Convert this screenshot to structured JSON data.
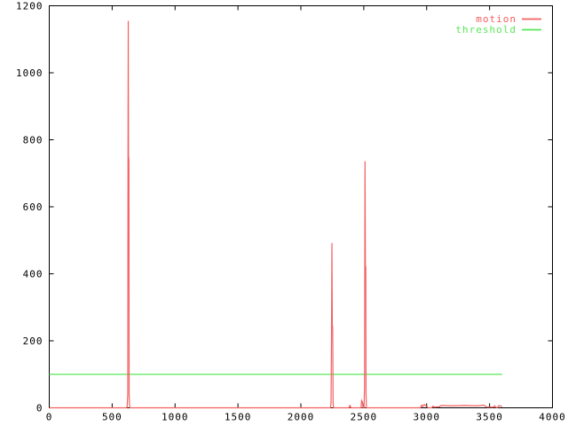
{
  "window": {
    "title": "",
    "background": "#ffffff"
  },
  "chart_data": {
    "type": "line",
    "title": "",
    "xlabel": "",
    "ylabel": "",
    "xlim": [
      0,
      4000
    ],
    "ylim": [
      0,
      1200
    ],
    "x_ticks": [
      0,
      500,
      1000,
      1500,
      2000,
      2500,
      3000,
      3500,
      4000
    ],
    "y_ticks": [
      0,
      200,
      400,
      600,
      800,
      1000,
      1200
    ],
    "grid": false,
    "legend_position": "top-right-inside",
    "axis_color": "#000000",
    "tick_label_color": "#000000",
    "series": [
      {
        "name": "motion",
        "color": "#f46060",
        "peaks_summary": [
          {
            "x": 628,
            "peak": 1155,
            "shoulder": 745
          },
          {
            "x": 2247,
            "peak": 492,
            "shoulder": 240
          },
          {
            "x": 2510,
            "peak": 736,
            "shoulder": 420
          }
        ],
        "points": [
          [
            0,
            0
          ],
          [
            615,
            0
          ],
          [
            620,
            8
          ],
          [
            624,
            40
          ],
          [
            626,
            745
          ],
          [
            628,
            1155
          ],
          [
            630,
            750
          ],
          [
            633,
            740
          ],
          [
            635,
            40
          ],
          [
            638,
            8
          ],
          [
            642,
            0
          ],
          [
            2235,
            0
          ],
          [
            2240,
            15
          ],
          [
            2244,
            240
          ],
          [
            2247,
            492
          ],
          [
            2250,
            245
          ],
          [
            2253,
            240
          ],
          [
            2256,
            15
          ],
          [
            2260,
            0
          ],
          [
            2383,
            0
          ],
          [
            2388,
            7
          ],
          [
            2393,
            6
          ],
          [
            2398,
            0
          ],
          [
            2478,
            0
          ],
          [
            2483,
            22
          ],
          [
            2489,
            18
          ],
          [
            2494,
            0
          ],
          [
            2502,
            0
          ],
          [
            2506,
            60
          ],
          [
            2508,
            420
          ],
          [
            2510,
            736
          ],
          [
            2513,
            425
          ],
          [
            2516,
            420
          ],
          [
            2518,
            40
          ],
          [
            2521,
            0
          ],
          [
            2950,
            0
          ],
          [
            2960,
            8
          ],
          [
            2968,
            3
          ],
          [
            2980,
            10
          ],
          [
            2993,
            6
          ],
          [
            3004,
            3
          ],
          [
            3012,
            0
          ],
          [
            3040,
            0
          ],
          [
            3050,
            5
          ],
          [
            3060,
            2
          ],
          [
            3100,
            3
          ],
          [
            3115,
            7
          ],
          [
            3200,
            6
          ],
          [
            3300,
            7
          ],
          [
            3400,
            6
          ],
          [
            3455,
            8
          ],
          [
            3470,
            4
          ],
          [
            3480,
            2
          ],
          [
            3530,
            2
          ],
          [
            3540,
            6
          ],
          [
            3552,
            1
          ],
          [
            3565,
            1
          ],
          [
            3572,
            6
          ],
          [
            3584,
            6
          ],
          [
            3600,
            3
          ]
        ]
      },
      {
        "name": "threshold",
        "color": "#58e858",
        "value": 100,
        "points": [
          [
            0,
            100
          ],
          [
            3600,
            100
          ]
        ]
      }
    ]
  }
}
